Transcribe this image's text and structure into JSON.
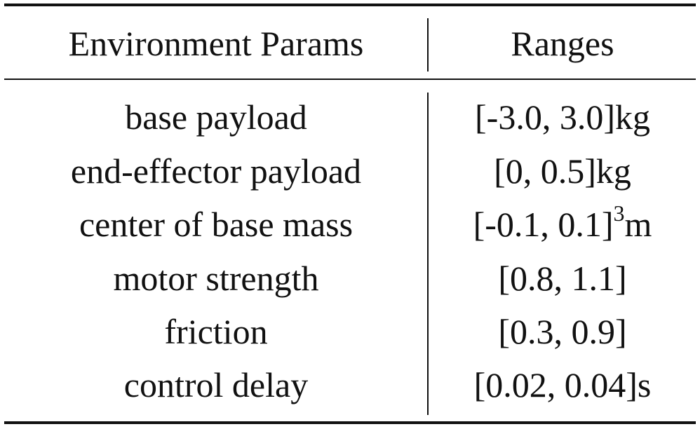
{
  "table": {
    "header": [
      "Environment Params",
      "Ranges"
    ],
    "rows": [
      [
        "base payload",
        "[-3.0, 3.0]kg"
      ],
      [
        "end-effector payload",
        "[0, 0.5]kg"
      ],
      [
        "center of base mass",
        {
          "base": "[-0.1, 0.1]",
          "sup": "3",
          "unit": "m"
        }
      ],
      [
        "motor strength",
        "[0.8, 1.1]"
      ],
      [
        "friction",
        "[0.3, 0.9]"
      ],
      [
        "control delay",
        "[0.02, 0.04]s"
      ]
    ]
  }
}
